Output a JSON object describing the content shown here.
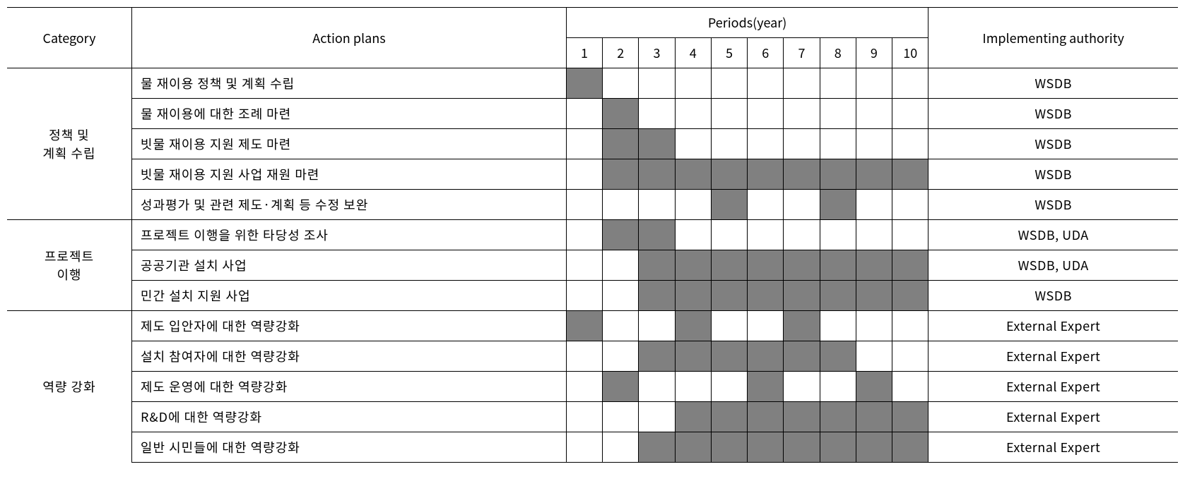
{
  "headers": {
    "category": "Category",
    "action_plans": "Action plans",
    "periods": "Periods(year)",
    "authority": "Implementing authority",
    "period_nums": [
      "1",
      "2",
      "3",
      "4",
      "5",
      "6",
      "7",
      "8",
      "9",
      "10"
    ]
  },
  "fillColor": "#808080",
  "emptyColor": "#ffffff",
  "categories": [
    {
      "name": "정책 및\n계획 수립",
      "rows": [
        {
          "plan": "물 재이용 정책 및 계획 수립",
          "periods": [
            1,
            0,
            0,
            0,
            0,
            0,
            0,
            0,
            0,
            0
          ],
          "authority": "WSDB"
        },
        {
          "plan": "물 재이용에 대한 조례 마련",
          "periods": [
            0,
            1,
            0,
            0,
            0,
            0,
            0,
            0,
            0,
            0
          ],
          "authority": "WSDB"
        },
        {
          "plan": "빗물 재이용 지원 제도 마련",
          "periods": [
            0,
            1,
            1,
            0,
            0,
            0,
            0,
            0,
            0,
            0
          ],
          "authority": "WSDB"
        },
        {
          "plan": "빗물 재이용 지원 사업 재원 마련",
          "periods": [
            0,
            1,
            1,
            1,
            1,
            1,
            1,
            1,
            1,
            1
          ],
          "authority": "WSDB"
        },
        {
          "plan": "성과평가 및 관련 제도·계획 등 수정 보완",
          "periods": [
            0,
            0,
            0,
            0,
            1,
            0,
            0,
            1,
            0,
            0
          ],
          "authority": "WSDB"
        }
      ]
    },
    {
      "name": "프로젝트\n이행",
      "rows": [
        {
          "plan": "프로젝트 이행을 위한 타당성 조사",
          "periods": [
            0,
            1,
            1,
            0,
            0,
            0,
            0,
            0,
            0,
            0
          ],
          "authority": "WSDB, UDA"
        },
        {
          "plan": "공공기관 설치 사업",
          "periods": [
            0,
            0,
            1,
            1,
            1,
            1,
            1,
            1,
            1,
            1
          ],
          "authority": "WSDB, UDA"
        },
        {
          "plan": "민간 설치 지원 사업",
          "periods": [
            0,
            0,
            1,
            1,
            1,
            1,
            1,
            1,
            1,
            1
          ],
          "authority": "WSDB"
        }
      ]
    },
    {
      "name": "역량 강화",
      "rows": [
        {
          "plan": "제도 입안자에 대한 역량강화",
          "periods": [
            1,
            0,
            0,
            1,
            0,
            0,
            1,
            0,
            0,
            0
          ],
          "authority": "External Expert"
        },
        {
          "plan": "설치 참여자에 대한 역량강화",
          "periods": [
            0,
            0,
            1,
            1,
            1,
            1,
            1,
            1,
            0,
            0
          ],
          "authority": "External Expert"
        },
        {
          "plan": "제도 운영에 대한 역량강화",
          "periods": [
            0,
            1,
            0,
            0,
            0,
            1,
            0,
            0,
            1,
            0
          ],
          "authority": "External Expert"
        },
        {
          "plan": "R&D에 대한 역량강화",
          "periods": [
            0,
            0,
            0,
            1,
            1,
            1,
            1,
            1,
            1,
            1
          ],
          "authority": "External Expert"
        },
        {
          "plan": "일반 시민들에 대한 역량강화",
          "periods": [
            0,
            0,
            1,
            1,
            1,
            1,
            1,
            1,
            1,
            1
          ],
          "authority": "External Expert"
        }
      ]
    }
  ]
}
